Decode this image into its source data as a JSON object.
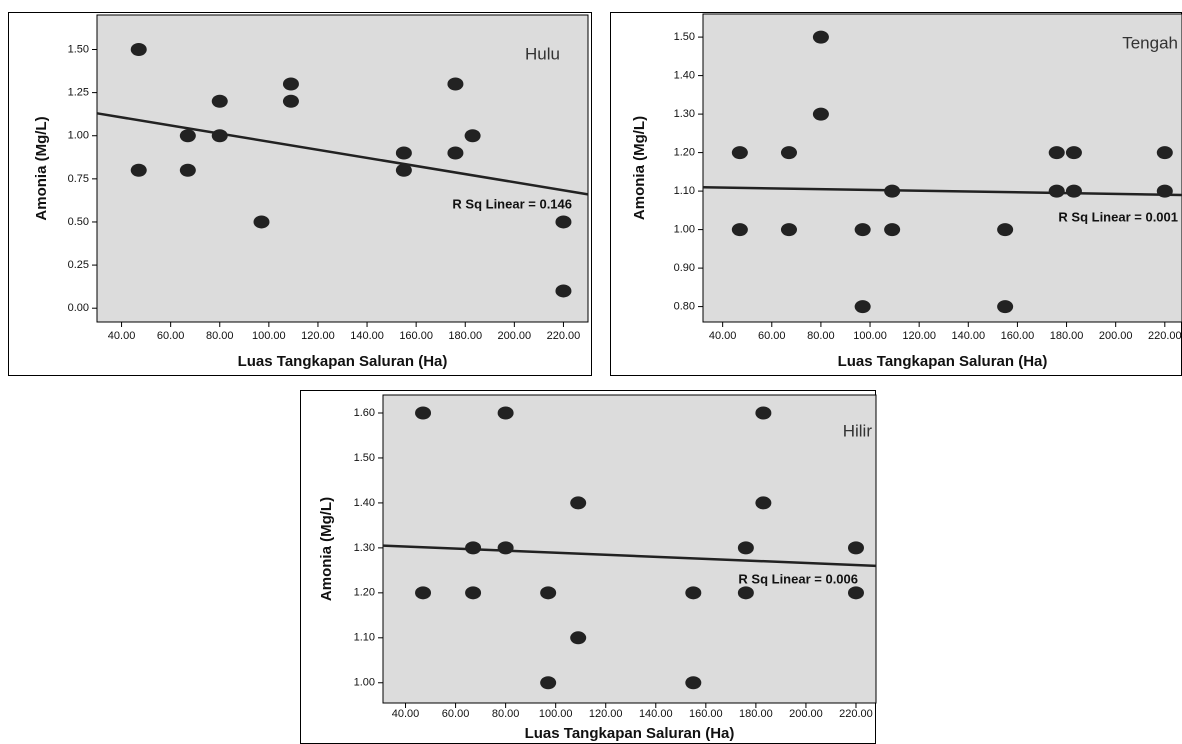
{
  "chart_data": [
    {
      "type": "scatter",
      "annotation": "Hulu",
      "fit_label": "R Sq Linear = 0.146",
      "x_label": "Luas Tangkapan Saluran (Ha)",
      "y_label": "Amonia (Mg/L)",
      "xlim": [
        30,
        230
      ],
      "ylim": [
        -0.08,
        1.7
      ],
      "xticks": [
        {
          "value": 40,
          "label": "40.00"
        },
        {
          "value": 60,
          "label": "60.00"
        },
        {
          "value": 80,
          "label": "80.00"
        },
        {
          "value": 100,
          "label": "100.00"
        },
        {
          "value": 120,
          "label": "120.00"
        },
        {
          "value": 140,
          "label": "140.00"
        },
        {
          "value": 160,
          "label": "160.00"
        },
        {
          "value": 180,
          "label": "180.00"
        },
        {
          "value": 200,
          "label": "200.00"
        },
        {
          "value": 220,
          "label": "220.00"
        }
      ],
      "yticks": [
        {
          "value": 0,
          "label": "0.00"
        },
        {
          "value": 0.25,
          "label": "0.25"
        },
        {
          "value": 0.5,
          "label": "0.50"
        },
        {
          "value": 0.75,
          "label": "0.75"
        },
        {
          "value": 1,
          "label": "1.00"
        },
        {
          "value": 1.25,
          "label": "1.25"
        },
        {
          "value": 1.5,
          "label": "1.50"
        }
      ],
      "color": "#222222",
      "x": [
        47,
        47,
        67,
        67,
        80,
        80,
        97,
        109,
        109,
        155,
        155,
        176,
        176,
        183,
        220,
        220
      ],
      "values": [
        1.5,
        0.8,
        1.0,
        0.8,
        1.2,
        1.0,
        0.5,
        1.3,
        1.2,
        0.9,
        0.8,
        1.3,
        0.9,
        1.0,
        0.5,
        0.1
      ],
      "trendline": {
        "x": [
          30,
          230
        ],
        "values": [
          1.13,
          0.66
        ]
      }
    },
    {
      "type": "scatter",
      "annotation": "Tengah",
      "fit_label": "R Sq Linear = 0.001",
      "x_label": "Luas Tangkapan Saluran (Ha)",
      "y_label": "Amonia (Mg/L)",
      "xlim": [
        32,
        227
      ],
      "ylim": [
        0.76,
        1.56
      ],
      "xticks": [
        {
          "value": 40,
          "label": "40.00"
        },
        {
          "value": 60,
          "label": "60.00"
        },
        {
          "value": 80,
          "label": "80.00"
        },
        {
          "value": 100,
          "label": "100.00"
        },
        {
          "value": 120,
          "label": "120.00"
        },
        {
          "value": 140,
          "label": "140.00"
        },
        {
          "value": 160,
          "label": "160.00"
        },
        {
          "value": 180,
          "label": "180.00"
        },
        {
          "value": 200,
          "label": "200.00"
        },
        {
          "value": 220,
          "label": "220.00"
        }
      ],
      "yticks": [
        {
          "value": 0.8,
          "label": "0.80"
        },
        {
          "value": 0.9,
          "label": "0.90"
        },
        {
          "value": 1.0,
          "label": "1.00"
        },
        {
          "value": 1.1,
          "label": "1.10"
        },
        {
          "value": 1.2,
          "label": "1.20"
        },
        {
          "value": 1.3,
          "label": "1.30"
        },
        {
          "value": 1.4,
          "label": "1.40"
        },
        {
          "value": 1.5,
          "label": "1.50"
        }
      ],
      "color": "#222222",
      "x": [
        47,
        47,
        67,
        67,
        80,
        80,
        97,
        97,
        109,
        109,
        155,
        155,
        176,
        176,
        183,
        183,
        220,
        220
      ],
      "values": [
        1.2,
        1.0,
        1.2,
        1.0,
        1.5,
        1.3,
        1.0,
        0.8,
        1.1,
        1.0,
        1.0,
        0.8,
        1.2,
        1.1,
        1.2,
        1.1,
        1.2,
        1.1
      ],
      "trendline": {
        "x": [
          32,
          227
        ],
        "values": [
          1.11,
          1.09
        ]
      }
    },
    {
      "type": "scatter",
      "annotation": "Hilir",
      "fit_label": "R Sq Linear = 0.006",
      "x_label": "Luas Tangkapan Saluran (Ha)",
      "y_label": "Amonia (Mg/L)",
      "xlim": [
        31,
        228
      ],
      "ylim": [
        0.955,
        1.64
      ],
      "xticks": [
        {
          "value": 40,
          "label": "40.00"
        },
        {
          "value": 60,
          "label": "60.00"
        },
        {
          "value": 80,
          "label": "80.00"
        },
        {
          "value": 100,
          "label": "100.00"
        },
        {
          "value": 120,
          "label": "120.00"
        },
        {
          "value": 140,
          "label": "140.00"
        },
        {
          "value": 160,
          "label": "160.00"
        },
        {
          "value": 180,
          "label": "180.00"
        },
        {
          "value": 200,
          "label": "200.00"
        },
        {
          "value": 220,
          "label": "220.00"
        }
      ],
      "yticks": [
        {
          "value": 1.0,
          "label": "1.00"
        },
        {
          "value": 1.1,
          "label": "1.10"
        },
        {
          "value": 1.2,
          "label": "1.20"
        },
        {
          "value": 1.3,
          "label": "1.30"
        },
        {
          "value": 1.4,
          "label": "1.40"
        },
        {
          "value": 1.5,
          "label": "1.50"
        },
        {
          "value": 1.6,
          "label": "1.60"
        }
      ],
      "color": "#222222",
      "x": [
        47,
        47,
        67,
        67,
        80,
        80,
        97,
        97,
        109,
        109,
        155,
        155,
        176,
        176,
        183,
        183,
        220,
        220
      ],
      "values": [
        1.6,
        1.2,
        1.3,
        1.2,
        1.6,
        1.3,
        1.2,
        1.0,
        1.4,
        1.1,
        1.2,
        1.0,
        1.3,
        1.2,
        1.6,
        1.4,
        1.3,
        1.2
      ],
      "trendline": {
        "x": [
          31,
          228
        ],
        "values": [
          1.305,
          1.26
        ]
      }
    }
  ]
}
